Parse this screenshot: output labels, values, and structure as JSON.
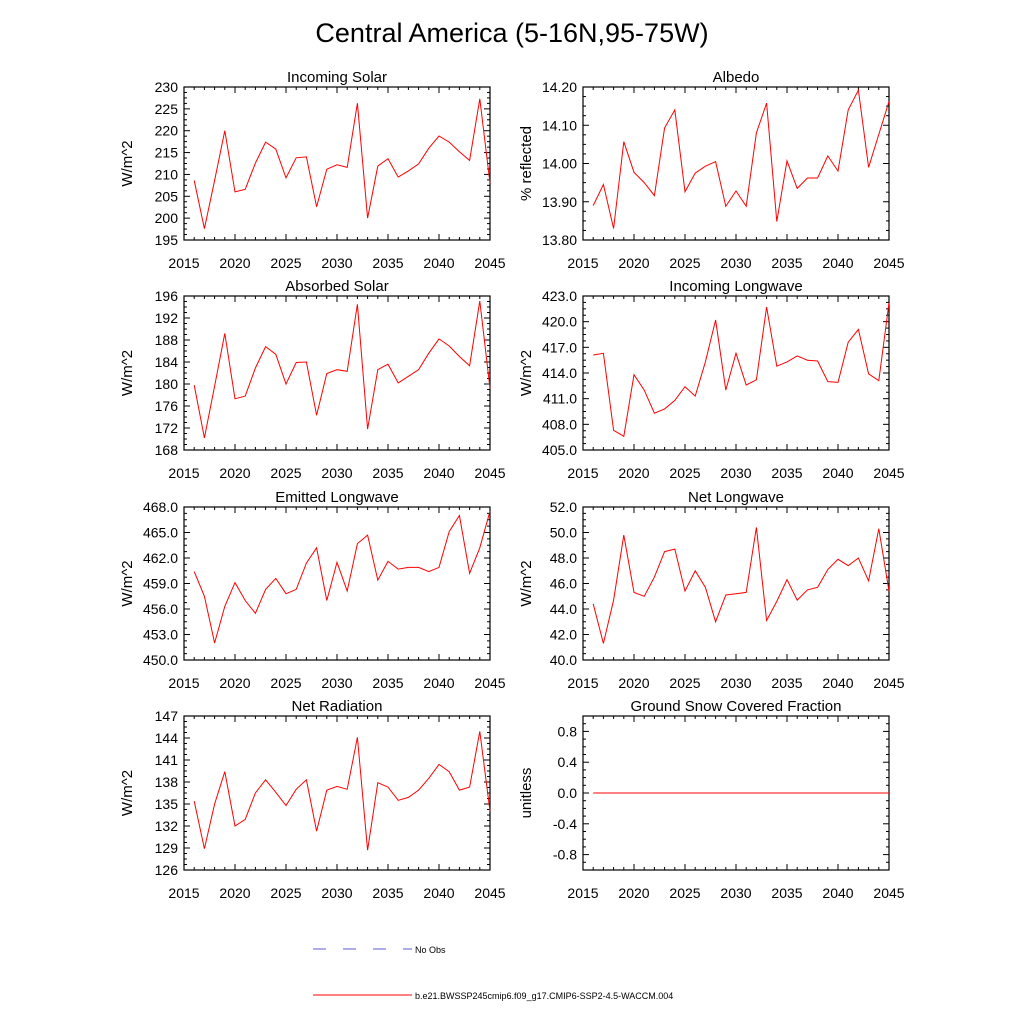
{
  "figure": {
    "title": "Central America (5-16N,95-75W)",
    "legend": [
      {
        "label": "No Obs",
        "color": "#5b5bd6",
        "style": "dashed"
      },
      {
        "label": "b.e21.BWSSP245cmip6.f09_g17.CMIP6-SSP2-4.5-WACCM.004",
        "color": "#ff0000",
        "style": "solid"
      }
    ]
  },
  "chart_data": [
    {
      "type": "line",
      "title": "Incoming Solar",
      "ylabel": "W/m^2",
      "xlabel": "",
      "xlim": [
        2015,
        2045
      ],
      "ylim": [
        195,
        230
      ],
      "xticks": [
        2015,
        2020,
        2025,
        2030,
        2035,
        2040,
        2045
      ],
      "yticks": [
        "195",
        "200",
        "205",
        "210",
        "215",
        "220",
        "225",
        "230"
      ],
      "x": [
        2016,
        2017,
        2018,
        2019,
        2020,
        2021,
        2022,
        2023,
        2024,
        2025,
        2026,
        2027,
        2028,
        2029,
        2030,
        2031,
        2032,
        2033,
        2034,
        2035,
        2036,
        2037,
        2038,
        2039,
        2040,
        2041,
        2042,
        2043,
        2044,
        2045
      ],
      "series": [
        {
          "name": "b.e21.BWSSP245cmip6.f09_g17.CMIP6-SSP2-4.5-WACCM.004",
          "color": "#ff0000",
          "values": [
            208.6,
            197.6,
            208.6,
            220.0,
            206.0,
            206.6,
            212.6,
            217.4,
            215.8,
            209.2,
            213.8,
            214.0,
            202.6,
            211.2,
            212.2,
            211.6,
            226.3,
            200.0,
            211.9,
            213.6,
            209.4,
            210.8,
            212.4,
            216.0,
            218.8,
            217.4,
            215.2,
            213.2,
            227.3,
            208.0
          ]
        }
      ]
    },
    {
      "type": "line",
      "title": "Albedo",
      "ylabel": "% reflected",
      "xlabel": "",
      "xlim": [
        2015,
        2045
      ],
      "ylim": [
        13.8,
        14.2
      ],
      "xticks": [
        2015,
        2020,
        2025,
        2030,
        2035,
        2040,
        2045
      ],
      "yticks": [
        "13.80",
        "13.90",
        "14.00",
        "14.10",
        "14.20"
      ],
      "x": [
        2016,
        2017,
        2018,
        2019,
        2020,
        2021,
        2022,
        2023,
        2024,
        2025,
        2026,
        2027,
        2028,
        2029,
        2030,
        2031,
        2032,
        2033,
        2034,
        2035,
        2036,
        2037,
        2038,
        2039,
        2040,
        2041,
        2042,
        2043,
        2044,
        2045
      ],
      "series": [
        {
          "name": "b.e21.BWSSP245cmip6.f09_g17.CMIP6-SSP2-4.5-WACCM.004",
          "color": "#ff0000",
          "values": [
            13.89,
            13.945,
            13.83,
            14.057,
            13.977,
            13.95,
            13.916,
            14.093,
            14.14,
            13.926,
            13.975,
            13.993,
            14.005,
            13.888,
            13.928,
            13.888,
            14.08,
            14.158,
            13.848,
            14.007,
            13.935,
            13.962,
            13.962,
            14.02,
            13.98,
            14.14,
            14.192,
            13.99,
            14.076,
            14.162
          ]
        }
      ]
    },
    {
      "type": "line",
      "title": "Absorbed Solar",
      "ylabel": "W/m^2",
      "xlabel": "",
      "xlim": [
        2015,
        2045
      ],
      "ylim": [
        168,
        196
      ],
      "xticks": [
        2015,
        2020,
        2025,
        2030,
        2035,
        2040,
        2045
      ],
      "yticks": [
        "168",
        "172",
        "176",
        "180",
        "184",
        "188",
        "192",
        "196"
      ],
      "x": [
        2016,
        2017,
        2018,
        2019,
        2020,
        2021,
        2022,
        2023,
        2024,
        2025,
        2026,
        2027,
        2028,
        2029,
        2030,
        2031,
        2032,
        2033,
        2034,
        2035,
        2036,
        2037,
        2038,
        2039,
        2040,
        2041,
        2042,
        2043,
        2044,
        2045
      ],
      "series": [
        {
          "name": "b.e21.BWSSP245cmip6.f09_g17.CMIP6-SSP2-4.5-WACCM.004",
          "color": "#ff0000",
          "values": [
            179.8,
            170.2,
            179.6,
            189.2,
            177.3,
            177.8,
            182.9,
            186.8,
            185.4,
            180.0,
            183.9,
            184.0,
            174.3,
            181.9,
            182.6,
            182.3,
            194.5,
            171.8,
            182.6,
            183.6,
            180.2,
            181.4,
            182.6,
            185.6,
            188.2,
            186.9,
            185.0,
            183.3,
            195.1,
            179.2
          ]
        }
      ]
    },
    {
      "type": "line",
      "title": "Incoming Longwave",
      "ylabel": "W/m^2",
      "xlabel": "",
      "xlim": [
        2015,
        2045
      ],
      "ylim": [
        405.0,
        423.0
      ],
      "xticks": [
        2015,
        2020,
        2025,
        2030,
        2035,
        2040,
        2045
      ],
      "yticks": [
        "405.0",
        "408.0",
        "411.0",
        "414.0",
        "417.0",
        "420.0",
        "423.0"
      ],
      "x": [
        2016,
        2017,
        2018,
        2019,
        2020,
        2021,
        2022,
        2023,
        2024,
        2025,
        2026,
        2027,
        2028,
        2029,
        2030,
        2031,
        2032,
        2033,
        2034,
        2035,
        2036,
        2037,
        2038,
        2039,
        2040,
        2041,
        2042,
        2043,
        2044,
        2045
      ],
      "series": [
        {
          "name": "b.e21.BWSSP245cmip6.f09_g17.CMIP6-SSP2-4.5-WACCM.004",
          "color": "#ff0000",
          "values": [
            416.1,
            416.3,
            407.3,
            406.6,
            413.8,
            412.0,
            409.3,
            409.8,
            410.8,
            412.4,
            411.3,
            415.3,
            420.2,
            412.0,
            416.3,
            412.6,
            413.2,
            421.7,
            414.8,
            415.3,
            416.0,
            415.5,
            415.4,
            413.0,
            412.9,
            417.6,
            419.1,
            413.9,
            413.1,
            422.2
          ]
        }
      ]
    },
    {
      "type": "line",
      "title": "Emitted Longwave",
      "ylabel": "W/m^2",
      "xlabel": "",
      "xlim": [
        2015,
        2045
      ],
      "ylim": [
        450.0,
        468.0
      ],
      "xticks": [
        2015,
        2020,
        2025,
        2030,
        2035,
        2040,
        2045
      ],
      "yticks": [
        "450.0",
        "453.0",
        "456.0",
        "459.0",
        "462.0",
        "465.0",
        "468.0"
      ],
      "x": [
        2016,
        2017,
        2018,
        2019,
        2020,
        2021,
        2022,
        2023,
        2024,
        2025,
        2026,
        2027,
        2028,
        2029,
        2030,
        2031,
        2032,
        2033,
        2034,
        2035,
        2036,
        2037,
        2038,
        2039,
        2040,
        2041,
        2042,
        2043,
        2044,
        2045
      ],
      "series": [
        {
          "name": "b.e21.BWSSP245cmip6.f09_g17.CMIP6-SSP2-4.5-WACCM.004",
          "color": "#ff0000",
          "values": [
            460.4,
            457.5,
            452.0,
            456.3,
            459.1,
            457.0,
            455.5,
            458.3,
            459.6,
            457.8,
            458.3,
            461.4,
            463.2,
            457.0,
            461.5,
            458.1,
            463.7,
            464.7,
            459.4,
            461.6,
            460.7,
            460.9,
            460.9,
            460.4,
            460.9,
            465.1,
            467.0,
            460.2,
            463.2,
            467.5
          ]
        }
      ]
    },
    {
      "type": "line",
      "title": "Net Longwave",
      "ylabel": "W/m^2",
      "xlabel": "",
      "xlim": [
        2015,
        2045
      ],
      "ylim": [
        40.0,
        52.0
      ],
      "xticks": [
        2015,
        2020,
        2025,
        2030,
        2035,
        2040,
        2045
      ],
      "yticks": [
        "40.0",
        "42.0",
        "44.0",
        "46.0",
        "48.0",
        "50.0",
        "52.0"
      ],
      "x": [
        2016,
        2017,
        2018,
        2019,
        2020,
        2021,
        2022,
        2023,
        2024,
        2025,
        2026,
        2027,
        2028,
        2029,
        2030,
        2031,
        2032,
        2033,
        2034,
        2035,
        2036,
        2037,
        2038,
        2039,
        2040,
        2041,
        2042,
        2043,
        2044,
        2045
      ],
      "series": [
        {
          "name": "b.e21.BWSSP245cmip6.f09_g17.CMIP6-SSP2-4.5-WACCM.004",
          "color": "#ff0000",
          "values": [
            44.4,
            41.3,
            44.7,
            49.8,
            45.3,
            45.0,
            46.5,
            48.5,
            48.7,
            45.4,
            47.0,
            45.7,
            43.0,
            45.1,
            45.2,
            45.3,
            50.4,
            43.1,
            44.6,
            46.3,
            44.7,
            45.5,
            45.7,
            47.1,
            47.9,
            47.4,
            48.0,
            46.2,
            50.3,
            45.4
          ]
        }
      ]
    },
    {
      "type": "line",
      "title": "Net Radiation",
      "ylabel": "W/m^2",
      "xlabel": "",
      "xlim": [
        2015,
        2045
      ],
      "ylim": [
        126,
        147
      ],
      "xticks": [
        2015,
        2020,
        2025,
        2030,
        2035,
        2040,
        2045
      ],
      "yticks": [
        "126",
        "129",
        "132",
        "135",
        "138",
        "141",
        "144",
        "147"
      ],
      "x": [
        2016,
        2017,
        2018,
        2019,
        2020,
        2021,
        2022,
        2023,
        2024,
        2025,
        2026,
        2027,
        2028,
        2029,
        2030,
        2031,
        2032,
        2033,
        2034,
        2035,
        2036,
        2037,
        2038,
        2039,
        2040,
        2041,
        2042,
        2043,
        2044,
        2045
      ],
      "series": [
        {
          "name": "b.e21.BWSSP245cmip6.f09_g17.CMIP6-SSP2-4.5-WACCM.004",
          "color": "#ff0000",
          "values": [
            135.4,
            128.9,
            135.0,
            139.4,
            132.0,
            132.9,
            136.5,
            138.3,
            136.6,
            134.8,
            137.0,
            138.3,
            131.3,
            136.9,
            137.4,
            137.0,
            144.1,
            128.7,
            137.9,
            137.3,
            135.5,
            135.9,
            136.9,
            138.5,
            140.4,
            139.4,
            136.9,
            137.3,
            144.9,
            134.0
          ]
        }
      ]
    },
    {
      "type": "line",
      "title": "Ground Snow Covered Fraction",
      "ylabel": "unitless",
      "xlabel": "",
      "xlim": [
        2015,
        2045
      ],
      "ylim": [
        -1.0,
        1.0
      ],
      "xticks": [
        2015,
        2020,
        2025,
        2030,
        2035,
        2040,
        2045
      ],
      "yticks": [
        "-0.8",
        "-0.4",
        "0.0",
        "0.4",
        "0.8"
      ],
      "x": [
        2016,
        2017,
        2018,
        2019,
        2020,
        2021,
        2022,
        2023,
        2024,
        2025,
        2026,
        2027,
        2028,
        2029,
        2030,
        2031,
        2032,
        2033,
        2034,
        2035,
        2036,
        2037,
        2038,
        2039,
        2040,
        2041,
        2042,
        2043,
        2044,
        2045
      ],
      "series": [
        {
          "name": "b.e21.BWSSP245cmip6.f09_g17.CMIP6-SSP2-4.5-WACCM.004",
          "color": "#ff0000",
          "values": [
            0,
            0,
            0,
            0,
            0,
            0,
            0,
            0,
            0,
            0,
            0,
            0,
            0,
            0,
            0,
            0,
            0,
            0,
            0,
            0,
            0,
            0,
            0,
            0,
            0,
            0,
            0,
            0,
            0,
            0
          ]
        }
      ]
    }
  ]
}
